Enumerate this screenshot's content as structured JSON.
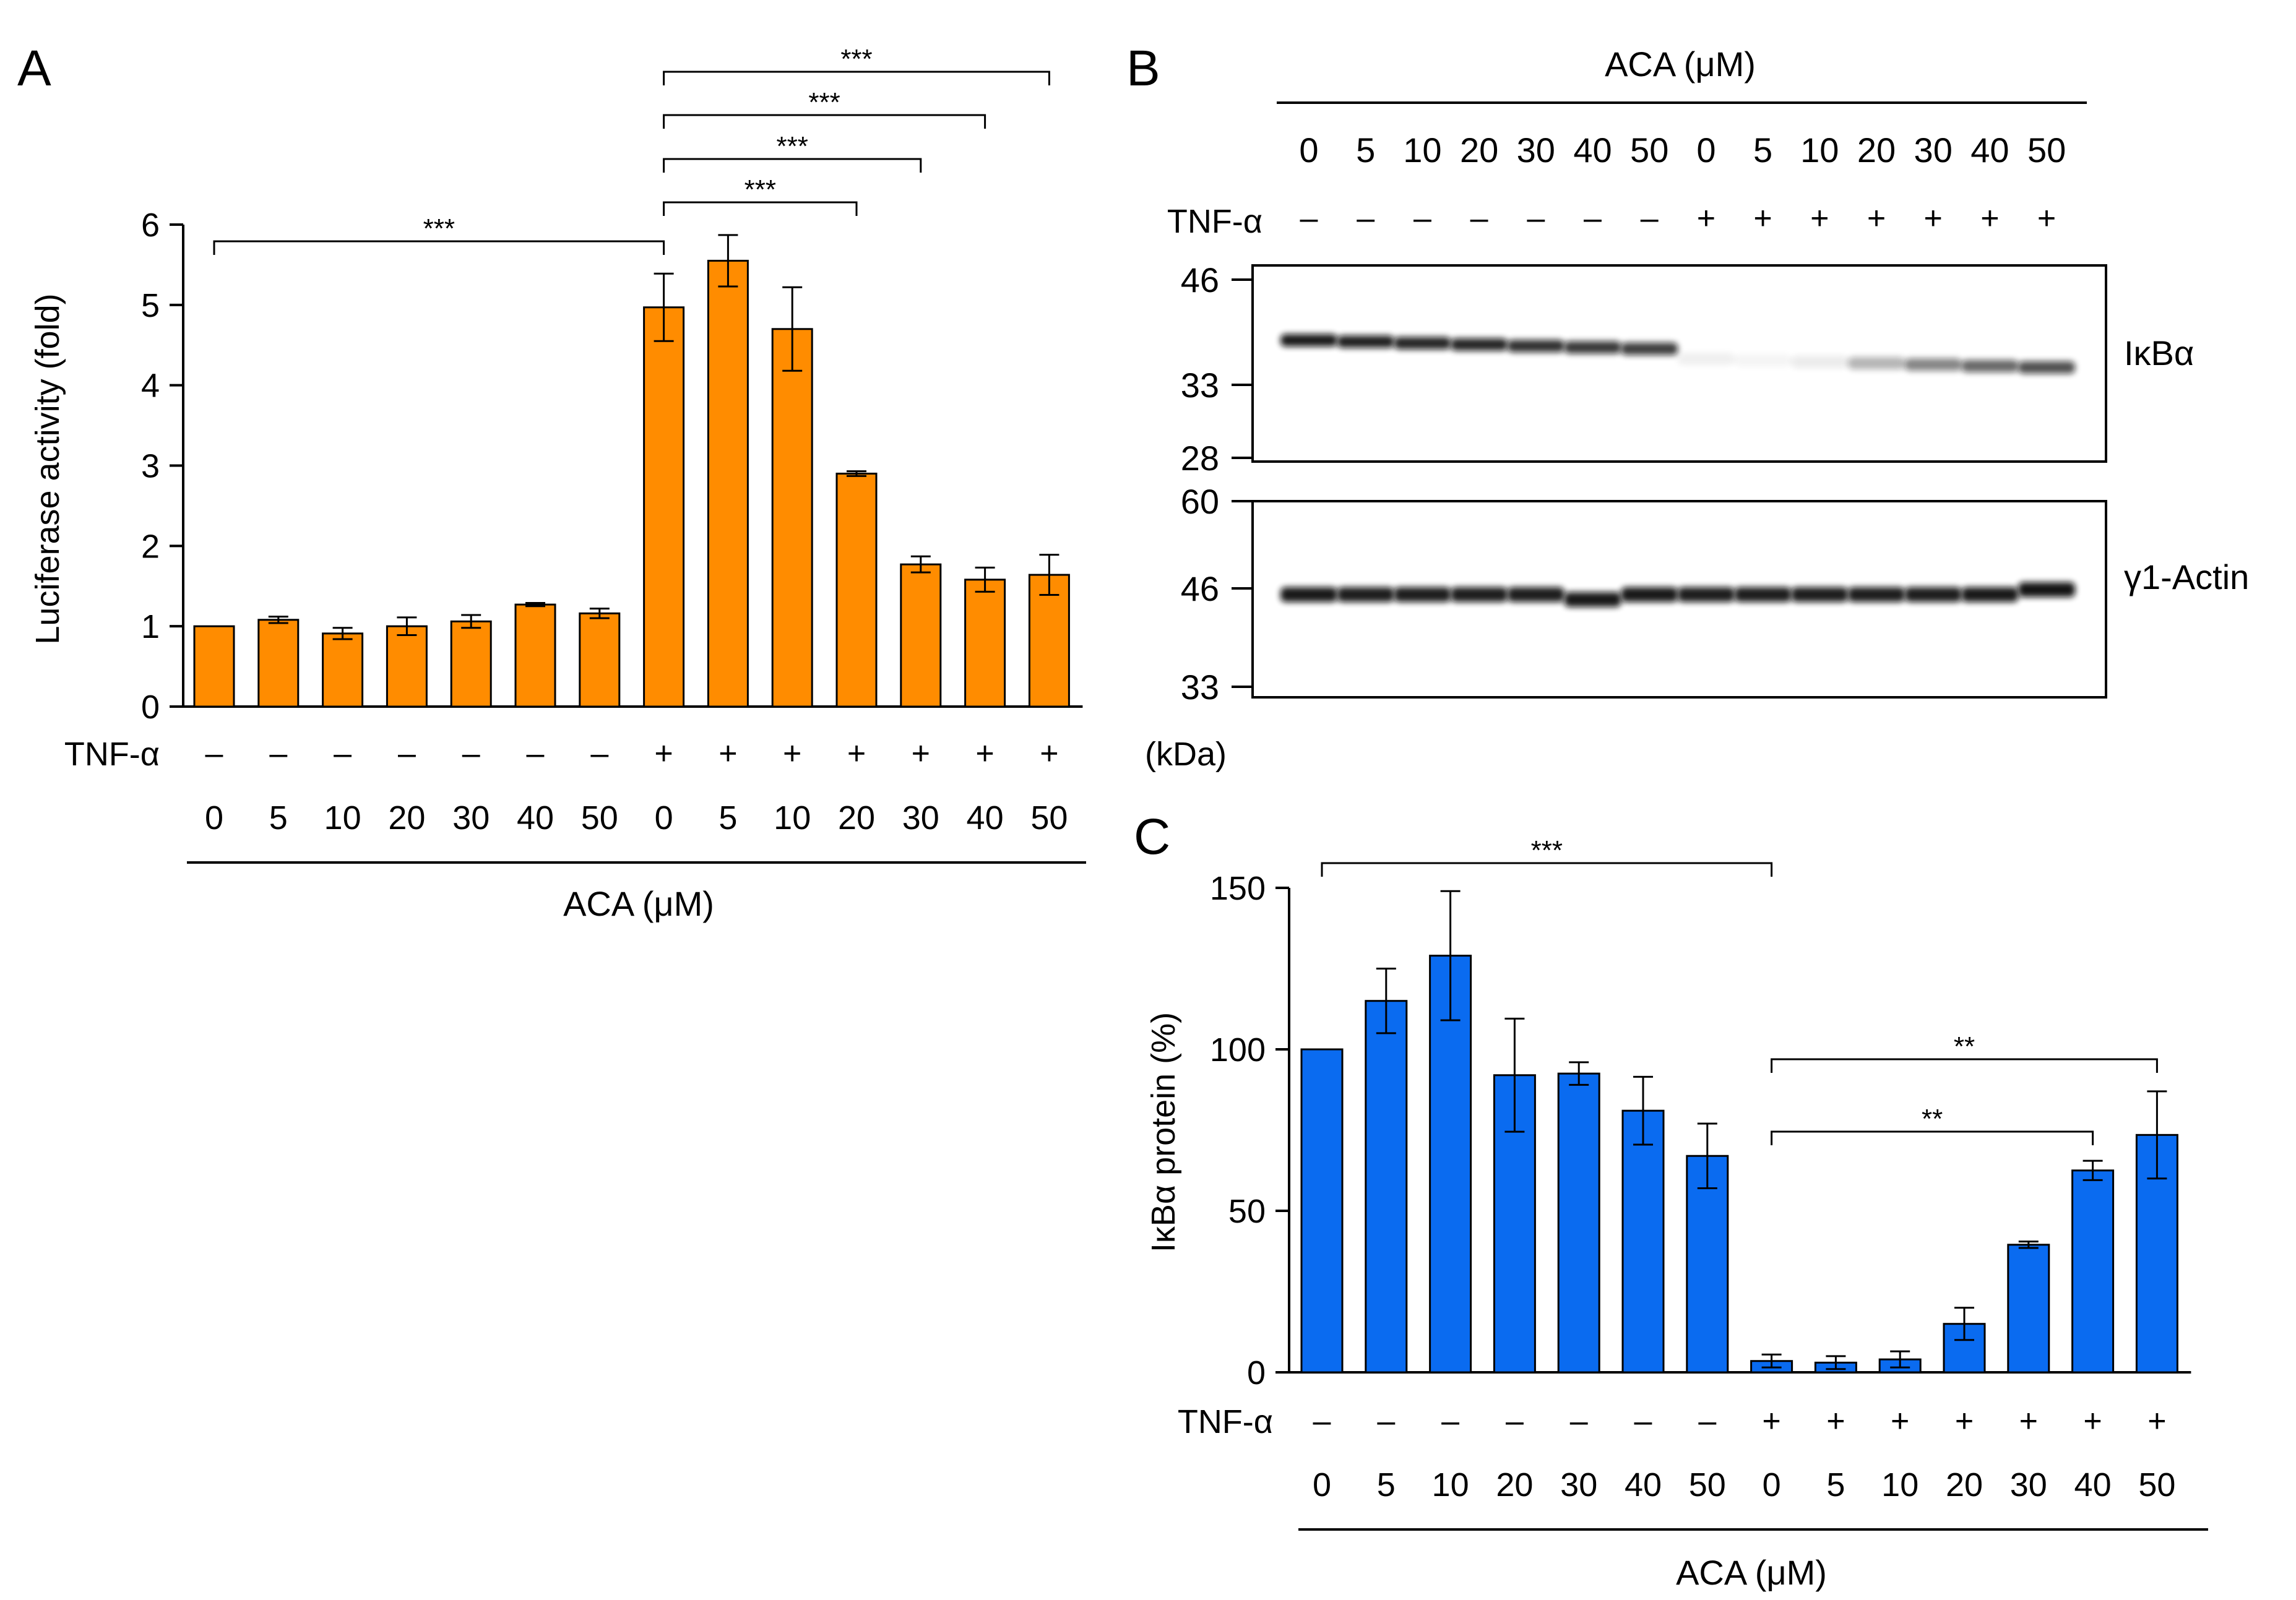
{
  "colors": {
    "panel_a_bar": "#FF8C00",
    "panel_c_bar": "#0A6BF0",
    "ink": "#000000"
  },
  "panel_a": {
    "letter": "A",
    "row_label": "TNF-α",
    "group_title": "ACA (μM)",
    "tnf_signs": [
      "–",
      "–",
      "–",
      "–",
      "–",
      "–",
      "–",
      "+",
      "+",
      "+",
      "+",
      "+",
      "+",
      "+"
    ],
    "aca_doses": [
      "0",
      "5",
      "10",
      "20",
      "30",
      "40",
      "50",
      "0",
      "5",
      "10",
      "20",
      "30",
      "40",
      "50"
    ]
  },
  "panel_b": {
    "letter": "B",
    "group_title": "ACA (μM)",
    "row_label": "TNF-α",
    "aca_doses": [
      "0",
      "5",
      "10",
      "20",
      "30",
      "40",
      "50",
      "0",
      "5",
      "10",
      "20",
      "30",
      "40",
      "50"
    ],
    "tnf_signs": [
      "–",
      "–",
      "–",
      "–",
      "–",
      "–",
      "–",
      "+",
      "+",
      "+",
      "+",
      "+",
      "+",
      "+"
    ],
    "blot1": {
      "label": "IκBα",
      "markers": [
        "46",
        "33",
        "28"
      ]
    },
    "blot2": {
      "label": "γ1-Actin",
      "markers": [
        "60",
        "46",
        "33"
      ]
    },
    "unit_label": "(kDa)",
    "ikba_band_intensity": [
      0.95,
      0.92,
      0.9,
      0.9,
      0.85,
      0.82,
      0.8,
      0.06,
      0.04,
      0.08,
      0.3,
      0.5,
      0.62,
      0.72
    ],
    "actin_band_intensity": [
      0.95,
      0.93,
      0.93,
      0.93,
      0.93,
      0.95,
      0.95,
      0.93,
      0.93,
      0.93,
      0.93,
      0.93,
      0.95,
      0.97
    ]
  },
  "panel_c": {
    "letter": "C",
    "row_label": "TNF-α",
    "group_title": "ACA (μM)",
    "tnf_signs": [
      "–",
      "–",
      "–",
      "–",
      "–",
      "–",
      "–",
      "+",
      "+",
      "+",
      "+",
      "+",
      "+",
      "+"
    ],
    "aca_doses": [
      "0",
      "5",
      "10",
      "20",
      "30",
      "40",
      "50",
      "0",
      "5",
      "10",
      "20",
      "30",
      "40",
      "50"
    ]
  },
  "chart_data": [
    {
      "panel": "A",
      "type": "bar",
      "ylabel": "Luciferase activity (fold)",
      "xlabel": "ACA (μM)",
      "ylim": [
        0,
        6
      ],
      "yticks": [
        "0",
        "1",
        "2",
        "3",
        "4",
        "5",
        "6"
      ],
      "categories": [
        "0",
        "5",
        "10",
        "20",
        "30",
        "40",
        "50",
        "0",
        "5",
        "10",
        "20",
        "30",
        "40",
        "50"
      ],
      "tnf": [
        "–",
        "–",
        "–",
        "–",
        "–",
        "–",
        "–",
        "+",
        "+",
        "+",
        "+",
        "+",
        "+",
        "+"
      ],
      "values": [
        1.0,
        1.08,
        0.91,
        1.0,
        1.06,
        1.27,
        1.16,
        4.97,
        5.55,
        4.7,
        2.9,
        1.77,
        1.58,
        1.64
      ],
      "errors": [
        0,
        0.04,
        0.07,
        0.11,
        0.08,
        0.02,
        0.06,
        0.42,
        0.32,
        0.52,
        0.03,
        0.1,
        0.15,
        0.25
      ],
      "significance": [
        {
          "from": 0,
          "to": 7,
          "label": "***"
        },
        {
          "from": 7,
          "to": 10,
          "label": "***"
        },
        {
          "from": 7,
          "to": 11,
          "label": "***"
        },
        {
          "from": 7,
          "to": 12,
          "label": "***"
        },
        {
          "from": 7,
          "to": 13,
          "label": "***"
        }
      ]
    },
    {
      "panel": "C",
      "type": "bar",
      "ylabel": "IκBα protein (%)",
      "xlabel": "ACA (μM)",
      "ylim": [
        0,
        150
      ],
      "yticks": [
        "0",
        "50",
        "100",
        "150"
      ],
      "categories": [
        "0",
        "5",
        "10",
        "20",
        "30",
        "40",
        "50",
        "0",
        "5",
        "10",
        "20",
        "30",
        "40",
        "50"
      ],
      "tnf": [
        "–",
        "–",
        "–",
        "–",
        "–",
        "–",
        "–",
        "+",
        "+",
        "+",
        "+",
        "+",
        "+",
        "+"
      ],
      "values": [
        100,
        115,
        129,
        92,
        92.5,
        81,
        67,
        3.5,
        3,
        4,
        15,
        39.5,
        62.5,
        73.5
      ],
      "errors": [
        0,
        10,
        20,
        17.5,
        3.5,
        10.5,
        10,
        2,
        2,
        2.5,
        5,
        1,
        3,
        13.5
      ],
      "significance": [
        {
          "from": 0,
          "to": 7,
          "label": "***"
        },
        {
          "from": 7,
          "to": 12,
          "label": "**"
        },
        {
          "from": 7,
          "to": 13,
          "label": "**"
        }
      ]
    }
  ]
}
